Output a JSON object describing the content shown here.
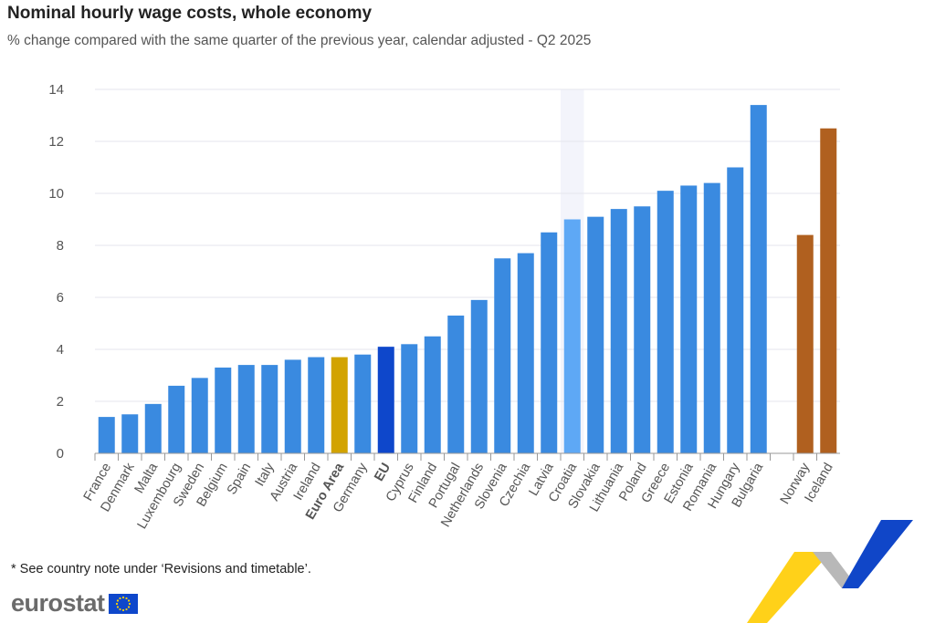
{
  "title": "Nominal hourly wage costs, whole economy",
  "subtitle": "% change compared with the same quarter of the previous year, calendar adjusted - Q2 2025",
  "footnote": "* See country note under ‘Revisions and timetable’.",
  "logo": "eurostat",
  "colors": {
    "default": "#3a8ae0",
    "eu": "#0e47cb",
    "euro_area": "#d2a300",
    "efta": "#b0601f",
    "highlight": "#5ea8f5",
    "grid": "#e6e6ee"
  },
  "chart_data": {
    "type": "bar",
    "title": "Nominal hourly wage costs, whole economy",
    "subtitle": "% change compared with the same quarter of the previous year, calendar adjusted - Q2 2025",
    "ylim": [
      0,
      14
    ],
    "yticks": [
      0,
      2,
      4,
      6,
      8,
      10,
      12,
      14
    ],
    "grid": true,
    "highlighted": "Croatia",
    "categories": [
      "France",
      "Denmark",
      "Malta",
      "Luxembourg",
      "Sweden",
      "Belgium",
      "Spain",
      "Italy",
      "Austria",
      "Ireland",
      "Euro Area",
      "Germany",
      "EU",
      "Cyprus",
      "Finland",
      "Portugal",
      "Netherlands",
      "Slovenia",
      "Czechia",
      "Latvia",
      "Croatia",
      "Slovakia",
      "Lithuania",
      "Poland",
      "Greece",
      "Estonia",
      "Romania",
      "Hungary",
      "Bulgaria",
      "",
      "Norway",
      "Iceland"
    ],
    "values": [
      1.4,
      1.5,
      1.9,
      2.6,
      2.9,
      3.3,
      3.4,
      3.4,
      3.6,
      3.7,
      3.7,
      3.8,
      4.1,
      4.2,
      4.5,
      5.3,
      5.9,
      7.5,
      7.7,
      8.5,
      9.0,
      9.1,
      9.4,
      9.5,
      10.1,
      10.3,
      10.4,
      11.0,
      13.4,
      null,
      8.4,
      12.5
    ],
    "groups": [
      "c",
      "c",
      "c",
      "c",
      "c",
      "c",
      "c",
      "c",
      "c",
      "c",
      "euro_area",
      "c",
      "eu",
      "c",
      "c",
      "c",
      "c",
      "c",
      "c",
      "c",
      "c",
      "c",
      "c",
      "c",
      "c",
      "c",
      "c",
      "c",
      "c",
      "gap",
      "efta",
      "efta"
    ]
  }
}
